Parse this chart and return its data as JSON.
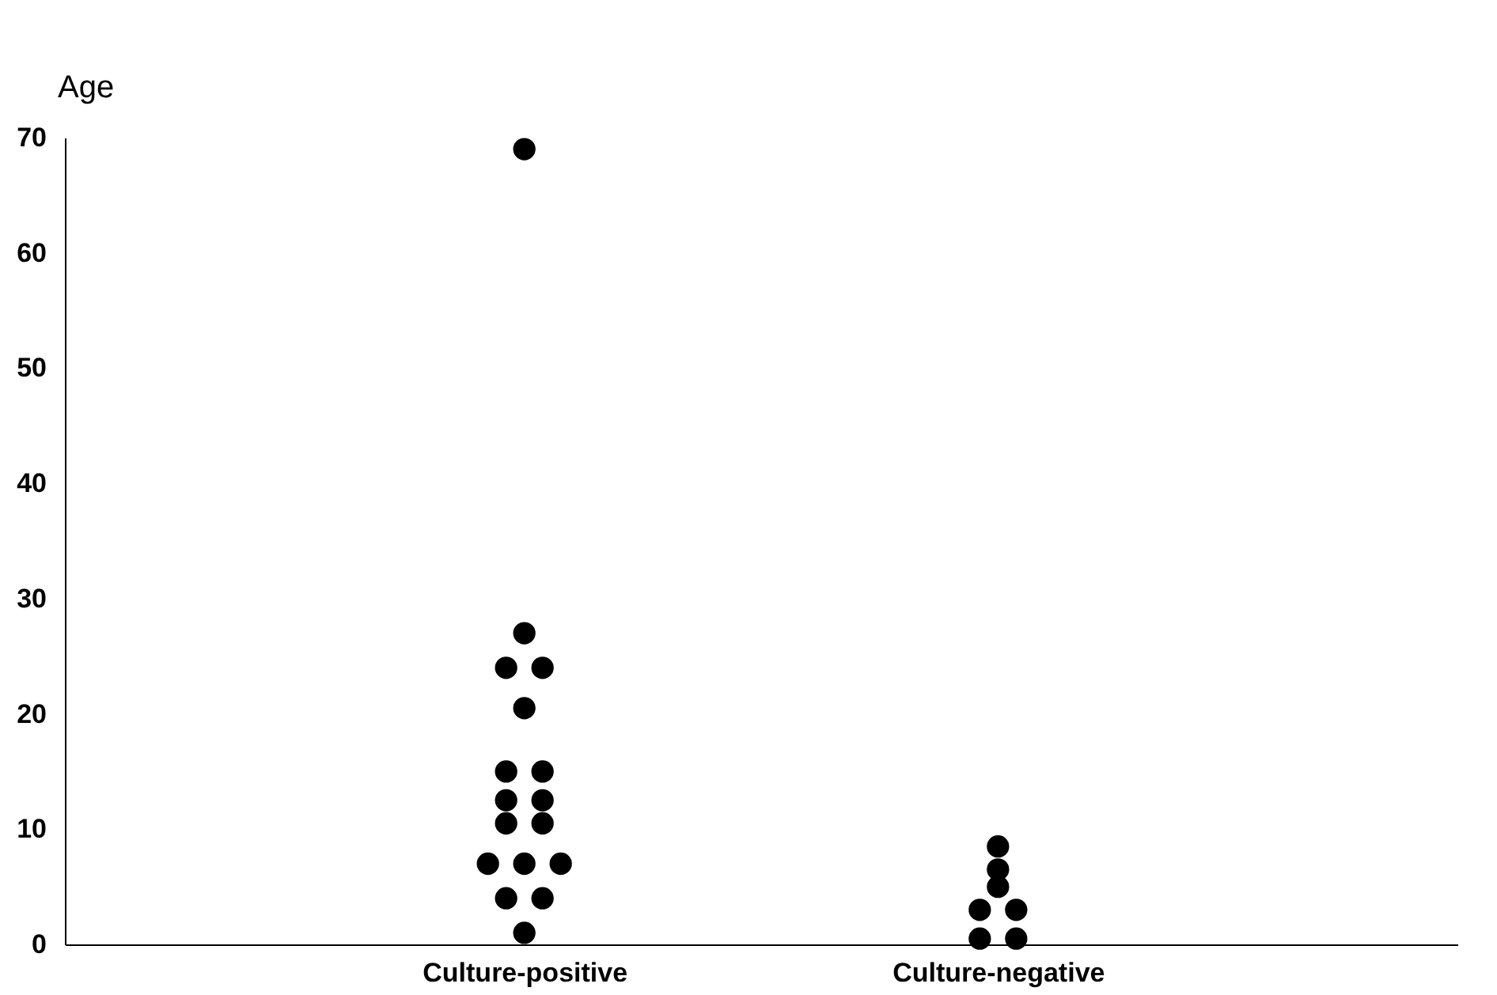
{
  "chart_data": {
    "type": "scatter",
    "ylabel": "Age",
    "categories": [
      "Culture-positive",
      "Culture-negative"
    ],
    "series": [
      {
        "color": "#000000",
        "x": [
          "Culture-positive",
          "Culture-positive",
          "Culture-positive",
          "Culture-positive",
          "Culture-positive",
          "Culture-positive",
          "Culture-positive",
          "Culture-positive",
          "Culture-positive",
          "Culture-positive",
          "Culture-positive",
          "Culture-positive",
          "Culture-positive",
          "Culture-positive",
          "Culture-positive",
          "Culture-positive",
          "Culture-positive",
          "Culture-negative",
          "Culture-negative",
          "Culture-negative",
          "Culture-negative",
          "Culture-negative",
          "Culture-negative",
          "Culture-negative"
        ],
        "values": [
          69,
          27,
          24,
          24,
          20.5,
          15,
          15,
          12.5,
          12.5,
          10.5,
          10.5,
          7,
          7,
          7,
          4,
          4,
          1,
          8.5,
          6.5,
          5,
          3,
          3,
          0.5,
          0.5
        ]
      }
    ],
    "ylim": [
      0,
      70
    ],
    "yticks": [
      0,
      10,
      20,
      30,
      40,
      50,
      60,
      70
    ],
    "grid": false,
    "marker": "circle"
  }
}
